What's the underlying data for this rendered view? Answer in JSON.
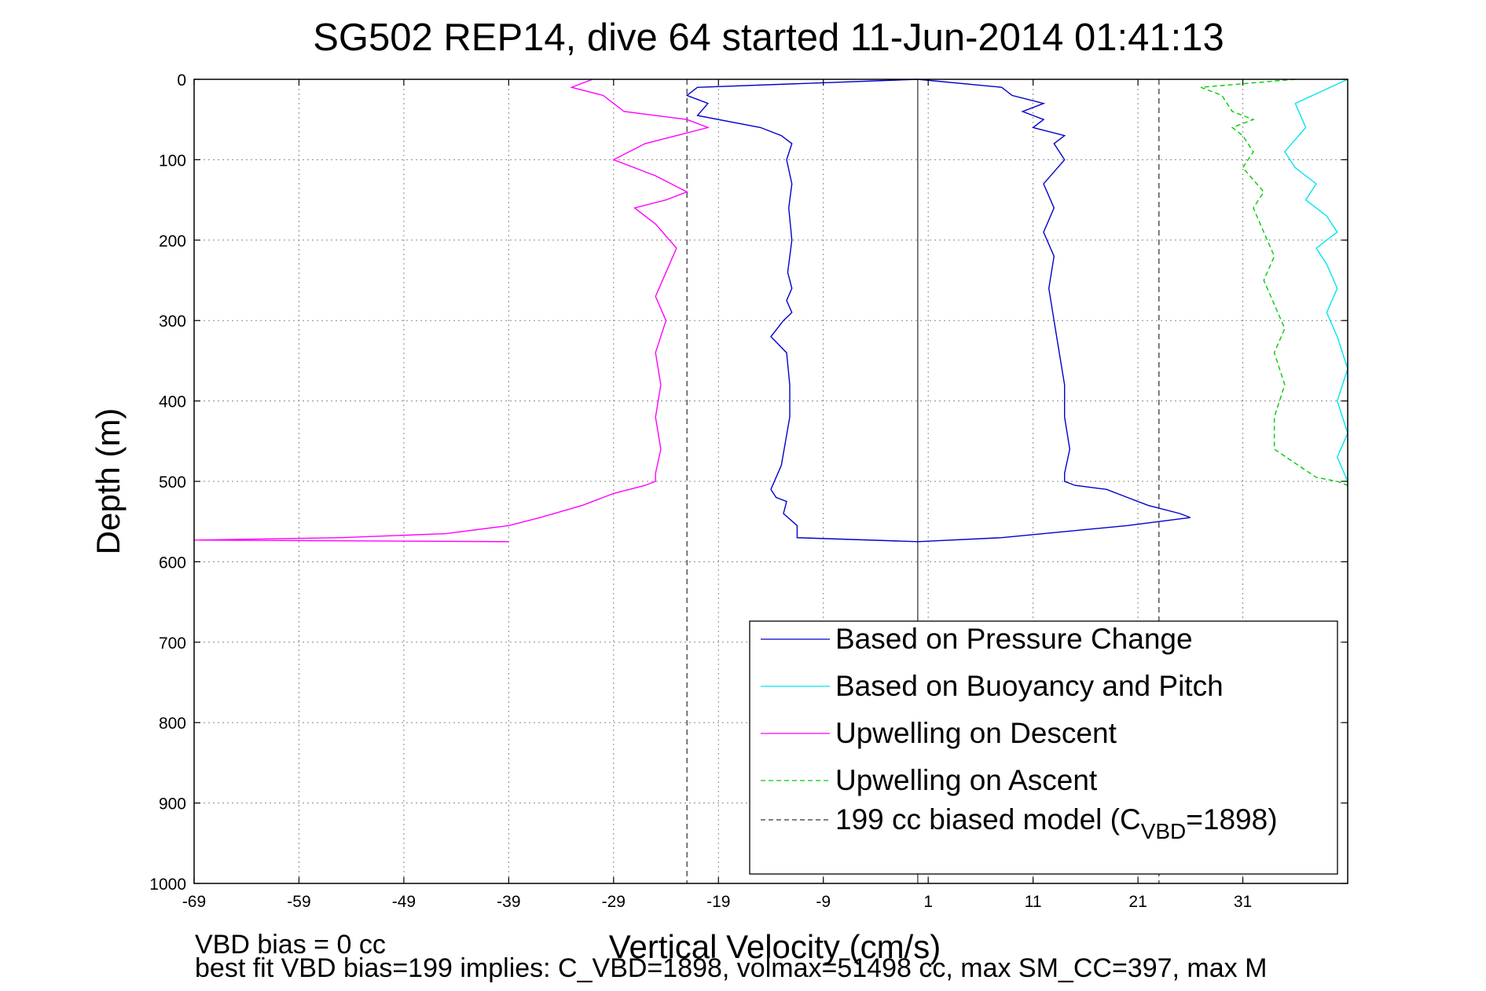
{
  "chart_data": {
    "type": "line",
    "title": "SG502 REP14, dive 64 started 11-Jun-2014 01:41:13",
    "xlabel": "Vertical Velocity (cm/s)",
    "ylabel": "Depth (m)",
    "xlim": [
      -69,
      41
    ],
    "ylim": [
      0,
      1000
    ],
    "y_reversed": true,
    "xticks": [
      "-69",
      "-59",
      "-49",
      "-39",
      "-29",
      "-19",
      "-9",
      "1",
      "11",
      "21",
      "31"
    ],
    "yticks": [
      "0",
      "100",
      "200",
      "300",
      "400",
      "500",
      "600",
      "700",
      "800",
      "900",
      "1000"
    ],
    "grid": true,
    "legend_position": "bottom-right",
    "colors": {
      "pressure": "#0000cc",
      "buoyancy": "#00e5ee",
      "upwell_descent": "#ff00ff",
      "upwell_ascent": "#00cc00",
      "model": "#555555"
    },
    "reference_lines": {
      "zero_x": 0,
      "model_descent_x": -22,
      "model_ascent_x": 23
    },
    "series": [
      {
        "name": "Based on Pressure Change",
        "style": "solid",
        "color": "#0000cc",
        "branches": [
          {
            "x": [
              0,
              -21,
              -22,
              -20,
              -21,
              -15,
              -13,
              -12,
              -12.5,
              -12,
              -12.3,
              -12,
              -12.4,
              -12,
              -12.5,
              -12,
              -12.8,
              -14,
              -12.5,
              -12.2,
              -12.2,
              -13,
              -14,
              -13.5,
              -12.5,
              -12.8,
              -11.5,
              -11.5,
              0
            ],
            "y": [
              0,
              10,
              20,
              30,
              45,
              60,
              70,
              80,
              100,
              130,
              160,
              200,
              240,
              260,
              275,
              290,
              300,
              320,
              340,
              380,
              420,
              480,
              510,
              520,
              525,
              540,
              555,
              570,
              575
            ]
          },
          {
            "x": [
              0,
              8,
              9,
              12,
              10,
              12,
              11,
              14,
              13,
              14,
              12,
              13,
              12,
              13,
              12.5,
              13,
              13.5,
              14,
              14,
              14.5,
              14,
              14,
              15,
              18,
              20,
              22,
              25,
              26,
              20,
              8,
              0
            ],
            "y": [
              0,
              10,
              20,
              30,
              40,
              50,
              60,
              70,
              80,
              100,
              130,
              160,
              190,
              220,
              260,
              300,
              340,
              380,
              420,
              460,
              490,
              500,
              505,
              510,
              520,
              530,
              540,
              545,
              555,
              570,
              575
            ]
          }
        ]
      },
      {
        "name": "Based on Buoyancy and Pitch",
        "style": "solid",
        "color": "#00e5ee",
        "branches": [
          {
            "x": [
              41,
              36,
              37,
              35,
              36,
              38,
              37,
              39,
              40,
              38,
              39,
              40,
              39,
              40,
              41,
              40,
              41,
              40,
              41,
              41
            ],
            "y": [
              0,
              30,
              60,
              90,
              110,
              130,
              150,
              170,
              190,
              210,
              230,
              260,
              290,
              320,
              360,
              400,
              440,
              470,
              500,
              505
            ]
          }
        ]
      },
      {
        "name": "Upwelling on Descent",
        "style": "solid",
        "color": "#ff00ff",
        "branches": [
          {
            "x": [
              -31,
              -33,
              -30,
              -28,
              -22,
              -20,
              -23,
              -26,
              -29,
              -25,
              -22,
              -24,
              -27,
              -25,
              -23,
              -24,
              -25,
              -24,
              -25,
              -24.5,
              -25,
              -24.5,
              -25,
              -25,
              -26,
              -29,
              -32,
              -36,
              -39,
              -45,
              -55,
              -69,
              -39
            ],
            "y": [
              0,
              10,
              20,
              40,
              50,
              60,
              70,
              80,
              100,
              120,
              140,
              150,
              160,
              180,
              210,
              240,
              270,
              300,
              340,
              380,
              420,
              460,
              490,
              500,
              505,
              515,
              530,
              545,
              555,
              565,
              570,
              573,
              575
            ]
          }
        ]
      },
      {
        "name": "Upwelling on Ascent",
        "style": "dashed",
        "color": "#00cc00",
        "branches": [
          {
            "x": [
              36,
              27,
              29,
              30,
              32,
              30,
              31,
              32,
              31,
              33,
              32,
              33,
              34,
              33,
              34,
              35,
              34,
              35,
              34,
              34,
              38,
              40,
              41
            ],
            "y": [
              0,
              10,
              20,
              40,
              50,
              60,
              70,
              90,
              110,
              140,
              160,
              190,
              220,
              250,
              280,
              310,
              340,
              380,
              420,
              460,
              495,
              500,
              505
            ]
          }
        ]
      },
      {
        "name": "199 cc biased model (C_VBD=1898)",
        "style": "dashed",
        "color": "#555555",
        "branches": []
      }
    ],
    "legend": {
      "entries": [
        {
          "text": "Based on Pressure Change",
          "color": "#0000cc",
          "style": "solid"
        },
        {
          "text": "Based on Buoyancy and Pitch",
          "color": "#00e5ee",
          "style": "solid"
        },
        {
          "text": "Upwelling on Descent",
          "color": "#ff00ff",
          "style": "solid"
        },
        {
          "text": "Upwelling on Ascent",
          "color": "#00cc00",
          "style": "dashed"
        },
        {
          "text_prefix": "199 cc biased model (C",
          "text_sub": "VBD",
          "text_suffix": "=1898)",
          "color": "#333333",
          "style": "dashed"
        }
      ]
    },
    "annotations": [
      "VBD bias = 0 cc",
      "best fit VBD bias=199 implies: C_VBD=1898, volmax=51498 cc, max SM_CC=397, max M"
    ]
  }
}
